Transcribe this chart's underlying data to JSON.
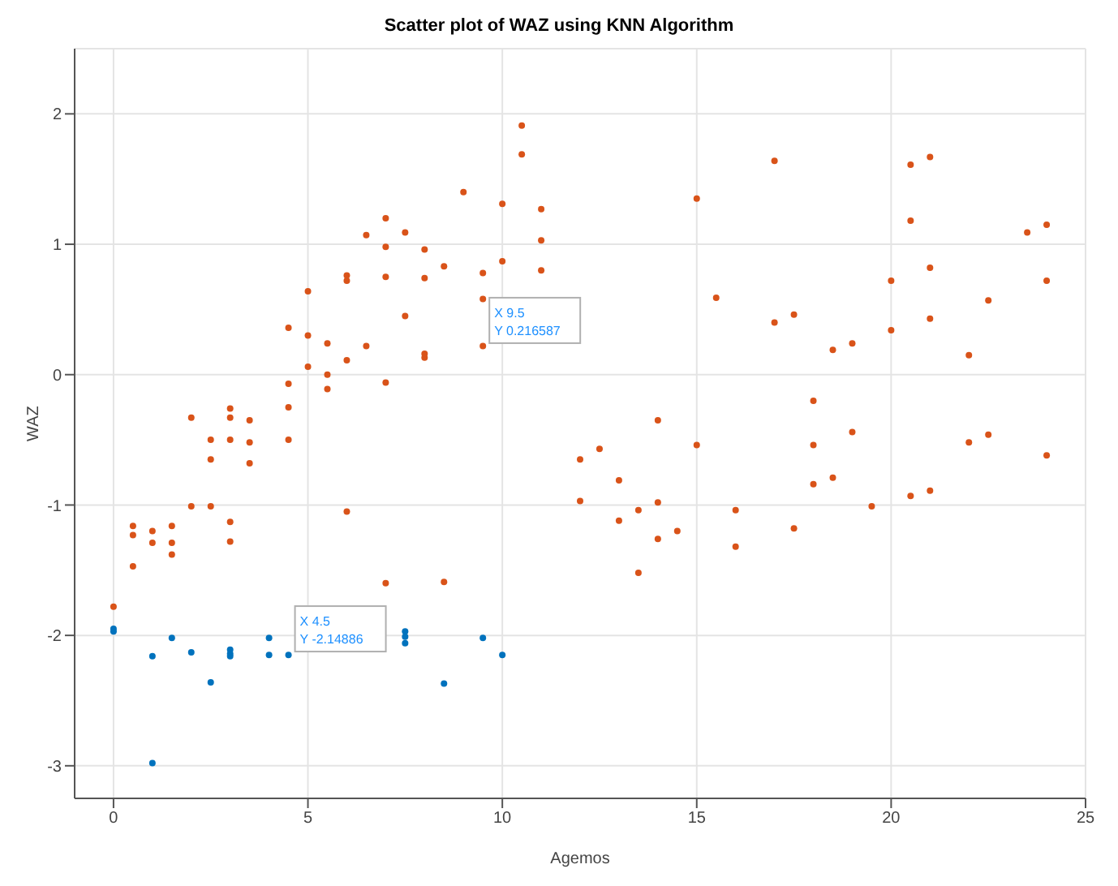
{
  "chart_data": {
    "type": "scatter",
    "title": "Scatter plot of WAZ using KNN Algorithm",
    "xlabel": "Agemos",
    "ylabel": "WAZ",
    "xlim": [
      -1,
      25
    ],
    "xticks": [
      0,
      5,
      10,
      15,
      20,
      25
    ],
    "ylim": [
      -3.25,
      2.5
    ],
    "yticks": [
      -3,
      -2,
      -1,
      0,
      1,
      2
    ],
    "grid": true,
    "marker": "circle",
    "annotations": [
      {
        "text": "X 9.5\nY 0.216587",
        "x": 9.5,
        "y": 0.216587
      },
      {
        "text": "X 4.5\nY -2.14886",
        "x": 4.5,
        "y": -2.14886
      }
    ],
    "series": [
      {
        "color": "#d95319",
        "x": [
          5,
          6,
          6,
          6.5,
          7,
          7,
          7,
          7.5,
          8,
          8,
          8.5,
          9,
          9.5,
          10,
          10,
          10.5,
          10.5,
          11,
          11,
          11,
          15,
          15.5,
          17,
          20,
          20.5,
          20.5,
          21,
          21,
          22.5,
          23.5,
          24,
          24,
          9.5,
          9.5,
          7.5,
          4.5,
          5,
          5.5,
          6.5,
          6,
          8,
          8,
          4.5,
          5,
          5.5,
          5.5,
          7,
          4.5,
          4.5,
          2,
          2.5,
          2.5,
          3,
          3,
          3,
          3.5,
          3.5,
          3.5,
          2,
          2.5,
          3,
          3,
          6,
          0.5,
          0.5,
          1,
          1,
          1.5,
          1.5,
          1.5,
          0.5,
          0,
          7,
          8.5,
          17,
          17.5,
          18.5,
          19,
          20,
          21,
          22,
          18,
          18,
          19,
          18,
          18.5,
          19.5,
          20.5,
          21,
          22,
          22.5,
          24,
          14,
          15,
          12,
          12.5,
          13,
          12,
          13,
          13.5,
          14,
          14,
          14.5,
          16,
          16,
          17.5,
          13.5
        ],
        "values": [
          0.64,
          0.72,
          0.76,
          1.07,
          1.2,
          0.98,
          0.75,
          1.09,
          0.96,
          0.74,
          0.83,
          1.4,
          0.78,
          1.31,
          0.87,
          1.91,
          1.69,
          1.27,
          1.03,
          0.8,
          1.35,
          0.59,
          1.64,
          0.72,
          1.61,
          1.18,
          1.67,
          0.82,
          0.57,
          1.09,
          1.15,
          0.72,
          0.58,
          0.22,
          0.45,
          0.36,
          0.3,
          0.24,
          0.22,
          0.11,
          0.16,
          0.13,
          -0.07,
          0.06,
          0,
          -0.11,
          -0.06,
          -0.25,
          -0.5,
          -0.33,
          -0.5,
          -0.65,
          -0.26,
          -0.33,
          -0.5,
          -0.35,
          -0.52,
          -0.68,
          -1.01,
          -1.01,
          -1.13,
          -1.28,
          -1.05,
          -1.16,
          -1.23,
          -1.2,
          -1.29,
          -1.16,
          -1.29,
          -1.38,
          -1.47,
          -1.78,
          -1.6,
          -1.59,
          0.4,
          0.46,
          0.19,
          0.24,
          0.34,
          0.43,
          0.15,
          -0.2,
          -0.54,
          -0.44,
          -0.84,
          -0.79,
          -1.01,
          -0.93,
          -0.89,
          -0.52,
          -0.46,
          -0.62,
          -0.35,
          -0.54,
          -0.65,
          -0.57,
          -0.81,
          -0.97,
          -1.12,
          -1.04,
          -0.98,
          -1.26,
          -1.2,
          -1.04,
          -1.32,
          -1.18,
          -1.52
        ]
      },
      {
        "color": "#0072bd",
        "x": [
          0,
          0,
          1,
          1.5,
          2,
          2.5,
          3,
          3,
          3,
          4,
          4,
          4.5,
          7.5,
          7.5,
          7.5,
          8.5,
          9.5,
          10,
          1
        ],
        "values": [
          -1.95,
          -1.97,
          -2.16,
          -2.02,
          -2.13,
          -2.36,
          -2.11,
          -2.14,
          -2.16,
          -2.02,
          -2.15,
          -2.15,
          -1.97,
          -2.01,
          -2.06,
          -2.37,
          -2.02,
          -2.15,
          -2.98
        ]
      }
    ]
  }
}
